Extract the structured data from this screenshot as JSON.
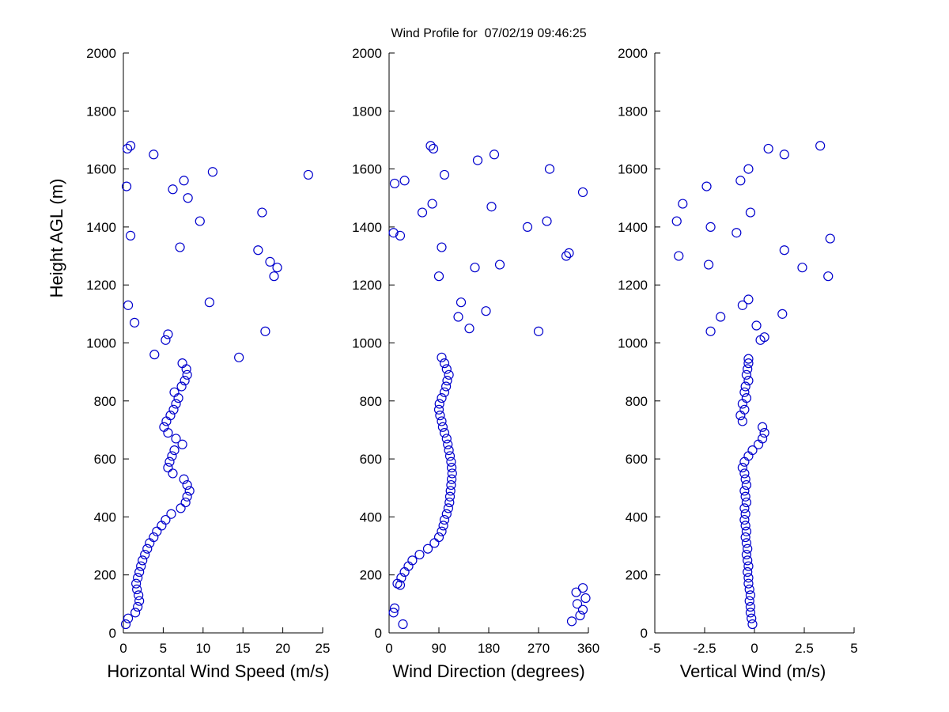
{
  "figure": {
    "title": "Wind Profile for  07/02/19 09:46:25",
    "ylabel": "Height AGL (m)",
    "marker_color": "#0000CD",
    "axis_color": "#000000",
    "background": "#FFFFFF"
  },
  "chart_data": [
    {
      "type": "scatter",
      "xlabel": "Horizontal Wind Speed (m/s)",
      "ylabel": "Height AGL (m)",
      "xlim": [
        0,
        25
      ],
      "xticks": [
        0,
        5,
        10,
        15,
        20,
        25
      ],
      "ylim": [
        0,
        2000
      ],
      "yticks": [
        0,
        200,
        400,
        600,
        800,
        1000,
        1200,
        1400,
        1600,
        1800,
        2000
      ],
      "marker": "open-circle",
      "legend": "none",
      "grid": false,
      "points": [
        [
          0.3,
          30
        ],
        [
          0.6,
          50
        ],
        [
          1.5,
          70
        ],
        [
          1.8,
          90
        ],
        [
          2.0,
          110
        ],
        [
          1.9,
          130
        ],
        [
          1.7,
          150
        ],
        [
          1.6,
          170
        ],
        [
          1.8,
          190
        ],
        [
          2.0,
          210
        ],
        [
          2.2,
          230
        ],
        [
          2.4,
          250
        ],
        [
          2.7,
          270
        ],
        [
          3.0,
          290
        ],
        [
          3.3,
          310
        ],
        [
          3.8,
          330
        ],
        [
          4.2,
          350
        ],
        [
          4.8,
          370
        ],
        [
          5.3,
          390
        ],
        [
          6.0,
          410
        ],
        [
          7.2,
          430
        ],
        [
          7.8,
          450
        ],
        [
          8.0,
          470
        ],
        [
          8.3,
          490
        ],
        [
          8.0,
          510
        ],
        [
          7.6,
          530
        ],
        [
          6.2,
          550
        ],
        [
          5.6,
          570
        ],
        [
          5.8,
          590
        ],
        [
          6.1,
          610
        ],
        [
          6.4,
          630
        ],
        [
          7.4,
          650
        ],
        [
          6.6,
          670
        ],
        [
          5.6,
          690
        ],
        [
          5.1,
          710
        ],
        [
          5.4,
          730
        ],
        [
          5.9,
          750
        ],
        [
          6.3,
          770
        ],
        [
          6.6,
          790
        ],
        [
          6.9,
          810
        ],
        [
          6.4,
          830
        ],
        [
          7.3,
          850
        ],
        [
          7.7,
          870
        ],
        [
          8.0,
          890
        ],
        [
          7.9,
          910
        ],
        [
          7.4,
          930
        ],
        [
          14.5,
          950
        ],
        [
          3.9,
          960
        ],
        [
          5.3,
          1010
        ],
        [
          5.6,
          1030
        ],
        [
          17.8,
          1040
        ],
        [
          1.4,
          1070
        ],
        [
          0.6,
          1130
        ],
        [
          10.8,
          1140
        ],
        [
          18.9,
          1230
        ],
        [
          19.3,
          1260
        ],
        [
          18.4,
          1280
        ],
        [
          16.9,
          1320
        ],
        [
          7.1,
          1330
        ],
        [
          0.9,
          1370
        ],
        [
          9.6,
          1420
        ],
        [
          17.4,
          1450
        ],
        [
          8.1,
          1500
        ],
        [
          6.2,
          1530
        ],
        [
          0.4,
          1540
        ],
        [
          7.6,
          1560
        ],
        [
          23.2,
          1580
        ],
        [
          11.2,
          1590
        ],
        [
          3.8,
          1650
        ],
        [
          0.5,
          1670
        ],
        [
          0.9,
          1680
        ]
      ]
    },
    {
      "type": "scatter",
      "xlabel": "Wind Direction (degrees)",
      "ylabel": "Height AGL (m)",
      "xlim": [
        0,
        360
      ],
      "xticks": [
        0,
        90,
        180,
        270,
        360
      ],
      "ylim": [
        0,
        2000
      ],
      "yticks": [
        0,
        200,
        400,
        600,
        800,
        1000,
        1200,
        1400,
        1600,
        1800,
        2000
      ],
      "marker": "open-circle",
      "legend": "none",
      "grid": false,
      "points": [
        [
          25,
          30
        ],
        [
          8,
          70
        ],
        [
          10,
          85
        ],
        [
          330,
          40
        ],
        [
          345,
          60
        ],
        [
          350,
          80
        ],
        [
          340,
          100
        ],
        [
          355,
          120
        ],
        [
          338,
          140
        ],
        [
          350,
          155
        ],
        [
          20,
          165
        ],
        [
          15,
          170
        ],
        [
          22,
          190
        ],
        [
          28,
          210
        ],
        [
          35,
          230
        ],
        [
          42,
          250
        ],
        [
          55,
          270
        ],
        [
          70,
          290
        ],
        [
          82,
          310
        ],
        [
          90,
          330
        ],
        [
          95,
          350
        ],
        [
          98,
          370
        ],
        [
          100,
          390
        ],
        [
          104,
          410
        ],
        [
          107,
          430
        ],
        [
          109,
          450
        ],
        [
          110,
          470
        ],
        [
          111,
          490
        ],
        [
          112,
          510
        ],
        [
          113,
          530
        ],
        [
          114,
          550
        ],
        [
          113,
          570
        ],
        [
          112,
          590
        ],
        [
          110,
          610
        ],
        [
          108,
          630
        ],
        [
          106,
          650
        ],
        [
          104,
          670
        ],
        [
          100,
          690
        ],
        [
          97,
          710
        ],
        [
          95,
          730
        ],
        [
          92,
          750
        ],
        [
          90,
          770
        ],
        [
          91,
          790
        ],
        [
          95,
          810
        ],
        [
          100,
          830
        ],
        [
          103,
          850
        ],
        [
          105,
          870
        ],
        [
          108,
          890
        ],
        [
          104,
          910
        ],
        [
          100,
          930
        ],
        [
          95,
          950
        ],
        [
          270,
          1040
        ],
        [
          145,
          1050
        ],
        [
          125,
          1090
        ],
        [
          175,
          1110
        ],
        [
          130,
          1140
        ],
        [
          90,
          1230
        ],
        [
          155,
          1260
        ],
        [
          200,
          1270
        ],
        [
          320,
          1300
        ],
        [
          325,
          1310
        ],
        [
          95,
          1330
        ],
        [
          20,
          1370
        ],
        [
          8,
          1380
        ],
        [
          250,
          1400
        ],
        [
          285,
          1420
        ],
        [
          60,
          1450
        ],
        [
          185,
          1470
        ],
        [
          78,
          1480
        ],
        [
          350,
          1520
        ],
        [
          10,
          1550
        ],
        [
          28,
          1560
        ],
        [
          100,
          1580
        ],
        [
          290,
          1600
        ],
        [
          160,
          1630
        ],
        [
          190,
          1650
        ],
        [
          80,
          1670
        ],
        [
          75,
          1680
        ]
      ]
    },
    {
      "type": "scatter",
      "xlabel": "Vertical Wind (m/s)",
      "ylabel": "Height AGL (m)",
      "xlim": [
        -5,
        5
      ],
      "xticks": [
        -5,
        -2.5,
        0,
        2.5,
        5
      ],
      "ylim": [
        0,
        2000
      ],
      "yticks": [
        0,
        200,
        400,
        600,
        800,
        1000,
        1200,
        1400,
        1600,
        1800,
        2000
      ],
      "marker": "open-circle",
      "legend": "none",
      "grid": false,
      "points": [
        [
          -0.1,
          30
        ],
        [
          -0.15,
          50
        ],
        [
          -0.2,
          70
        ],
        [
          -0.2,
          90
        ],
        [
          -0.25,
          110
        ],
        [
          -0.2,
          130
        ],
        [
          -0.25,
          150
        ],
        [
          -0.3,
          170
        ],
        [
          -0.3,
          190
        ],
        [
          -0.35,
          210
        ],
        [
          -0.3,
          230
        ],
        [
          -0.35,
          250
        ],
        [
          -0.4,
          270
        ],
        [
          -0.35,
          290
        ],
        [
          -0.4,
          310
        ],
        [
          -0.45,
          330
        ],
        [
          -0.4,
          350
        ],
        [
          -0.45,
          370
        ],
        [
          -0.5,
          390
        ],
        [
          -0.45,
          410
        ],
        [
          -0.5,
          430
        ],
        [
          -0.4,
          450
        ],
        [
          -0.45,
          470
        ],
        [
          -0.5,
          490
        ],
        [
          -0.4,
          510
        ],
        [
          -0.45,
          530
        ],
        [
          -0.5,
          550
        ],
        [
          -0.6,
          570
        ],
        [
          -0.5,
          590
        ],
        [
          -0.3,
          610
        ],
        [
          -0.1,
          630
        ],
        [
          0.2,
          650
        ],
        [
          0.4,
          670
        ],
        [
          0.5,
          690
        ],
        [
          0.4,
          710
        ],
        [
          -0.6,
          730
        ],
        [
          -0.7,
          750
        ],
        [
          -0.5,
          770
        ],
        [
          -0.6,
          790
        ],
        [
          -0.4,
          810
        ],
        [
          -0.5,
          830
        ],
        [
          -0.45,
          850
        ],
        [
          -0.3,
          870
        ],
        [
          -0.4,
          890
        ],
        [
          -0.35,
          910
        ],
        [
          -0.3,
          930
        ],
        [
          -0.3,
          945
        ],
        [
          0.3,
          1010
        ],
        [
          0.5,
          1020
        ],
        [
          -2.2,
          1040
        ],
        [
          0.1,
          1060
        ],
        [
          -1.7,
          1090
        ],
        [
          1.4,
          1100
        ],
        [
          -0.6,
          1130
        ],
        [
          -0.3,
          1150
        ],
        [
          3.7,
          1230
        ],
        [
          2.4,
          1260
        ],
        [
          -2.3,
          1270
        ],
        [
          -3.8,
          1300
        ],
        [
          1.5,
          1320
        ],
        [
          3.8,
          1360
        ],
        [
          -0.9,
          1380
        ],
        [
          -2.2,
          1400
        ],
        [
          -3.9,
          1420
        ],
        [
          -0.2,
          1450
        ],
        [
          -3.6,
          1480
        ],
        [
          -2.4,
          1540
        ],
        [
          -0.7,
          1560
        ],
        [
          -0.3,
          1600
        ],
        [
          1.5,
          1650
        ],
        [
          0.7,
          1670
        ],
        [
          3.3,
          1680
        ]
      ]
    }
  ]
}
